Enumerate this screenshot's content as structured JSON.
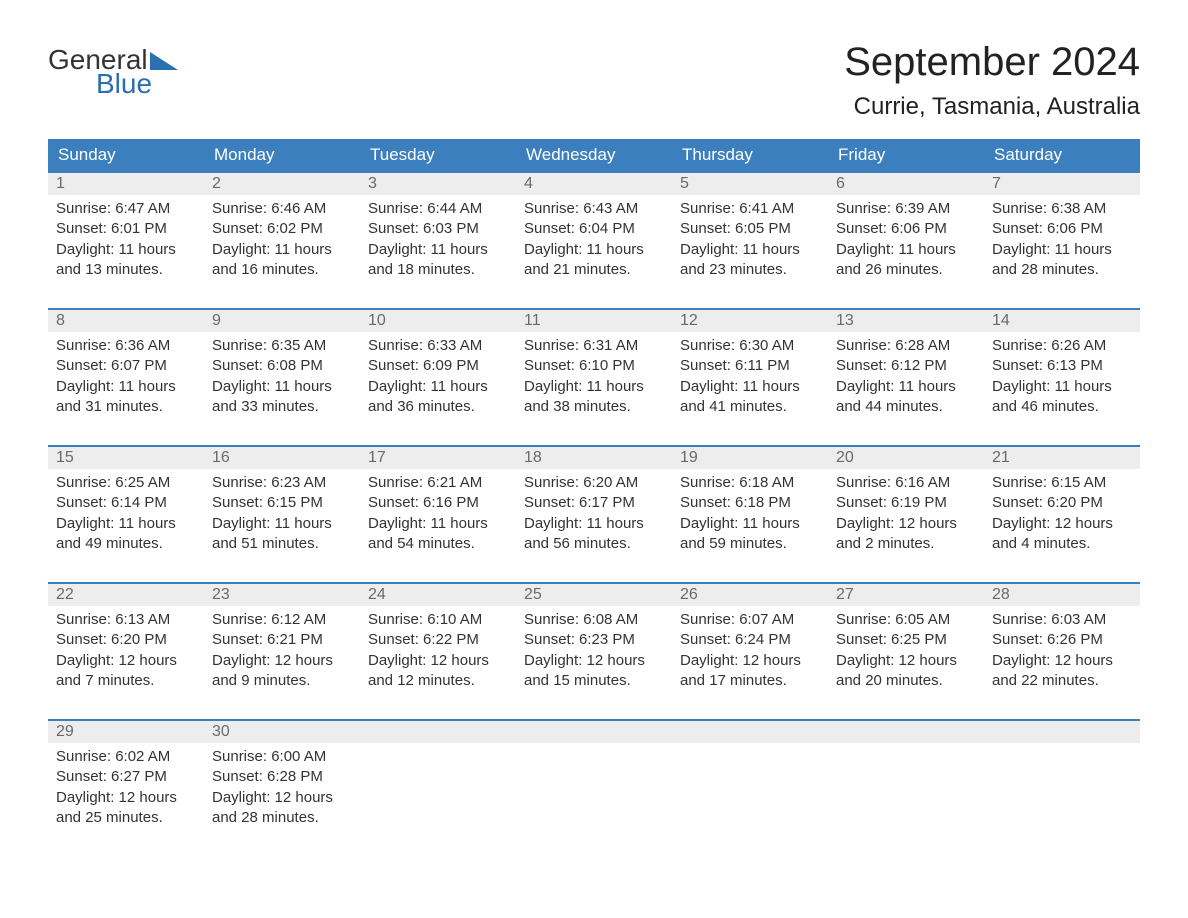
{
  "brand": {
    "name_part1": "General",
    "name_part2": "Blue",
    "text_color": "#333333",
    "accent_color": "#2b6fb0",
    "triangle_color": "#2b6fb0"
  },
  "title": {
    "month": "September 2024",
    "location": "Currie, Tasmania, Australia",
    "month_fontsize": 40,
    "location_fontsize": 24,
    "text_color": "#222222"
  },
  "calendar": {
    "type": "calendar-table",
    "header_bg": "#3b7fbf",
    "header_text_color": "#ffffff",
    "daynum_bg": "#ededed",
    "daynum_border_color": "#3b7fbf",
    "daynum_text_color": "#6a6a6a",
    "body_text_color": "#333333",
    "body_fontsize": 15,
    "columns": [
      "Sunday",
      "Monday",
      "Tuesday",
      "Wednesday",
      "Thursday",
      "Friday",
      "Saturday"
    ],
    "weeks": [
      [
        {
          "n": "1",
          "sunrise": "Sunrise: 6:47 AM",
          "sunset": "Sunset: 6:01 PM",
          "daylight": "Daylight: 11 hours and 13 minutes."
        },
        {
          "n": "2",
          "sunrise": "Sunrise: 6:46 AM",
          "sunset": "Sunset: 6:02 PM",
          "daylight": "Daylight: 11 hours and 16 minutes."
        },
        {
          "n": "3",
          "sunrise": "Sunrise: 6:44 AM",
          "sunset": "Sunset: 6:03 PM",
          "daylight": "Daylight: 11 hours and 18 minutes."
        },
        {
          "n": "4",
          "sunrise": "Sunrise: 6:43 AM",
          "sunset": "Sunset: 6:04 PM",
          "daylight": "Daylight: 11 hours and 21 minutes."
        },
        {
          "n": "5",
          "sunrise": "Sunrise: 6:41 AM",
          "sunset": "Sunset: 6:05 PM",
          "daylight": "Daylight: 11 hours and 23 minutes."
        },
        {
          "n": "6",
          "sunrise": "Sunrise: 6:39 AM",
          "sunset": "Sunset: 6:06 PM",
          "daylight": "Daylight: 11 hours and 26 minutes."
        },
        {
          "n": "7",
          "sunrise": "Sunrise: 6:38 AM",
          "sunset": "Sunset: 6:06 PM",
          "daylight": "Daylight: 11 hours and 28 minutes."
        }
      ],
      [
        {
          "n": "8",
          "sunrise": "Sunrise: 6:36 AM",
          "sunset": "Sunset: 6:07 PM",
          "daylight": "Daylight: 11 hours and 31 minutes."
        },
        {
          "n": "9",
          "sunrise": "Sunrise: 6:35 AM",
          "sunset": "Sunset: 6:08 PM",
          "daylight": "Daylight: 11 hours and 33 minutes."
        },
        {
          "n": "10",
          "sunrise": "Sunrise: 6:33 AM",
          "sunset": "Sunset: 6:09 PM",
          "daylight": "Daylight: 11 hours and 36 minutes."
        },
        {
          "n": "11",
          "sunrise": "Sunrise: 6:31 AM",
          "sunset": "Sunset: 6:10 PM",
          "daylight": "Daylight: 11 hours and 38 minutes."
        },
        {
          "n": "12",
          "sunrise": "Sunrise: 6:30 AM",
          "sunset": "Sunset: 6:11 PM",
          "daylight": "Daylight: 11 hours and 41 minutes."
        },
        {
          "n": "13",
          "sunrise": "Sunrise: 6:28 AM",
          "sunset": "Sunset: 6:12 PM",
          "daylight": "Daylight: 11 hours and 44 minutes."
        },
        {
          "n": "14",
          "sunrise": "Sunrise: 6:26 AM",
          "sunset": "Sunset: 6:13 PM",
          "daylight": "Daylight: 11 hours and 46 minutes."
        }
      ],
      [
        {
          "n": "15",
          "sunrise": "Sunrise: 6:25 AM",
          "sunset": "Sunset: 6:14 PM",
          "daylight": "Daylight: 11 hours and 49 minutes."
        },
        {
          "n": "16",
          "sunrise": "Sunrise: 6:23 AM",
          "sunset": "Sunset: 6:15 PM",
          "daylight": "Daylight: 11 hours and 51 minutes."
        },
        {
          "n": "17",
          "sunrise": "Sunrise: 6:21 AM",
          "sunset": "Sunset: 6:16 PM",
          "daylight": "Daylight: 11 hours and 54 minutes."
        },
        {
          "n": "18",
          "sunrise": "Sunrise: 6:20 AM",
          "sunset": "Sunset: 6:17 PM",
          "daylight": "Daylight: 11 hours and 56 minutes."
        },
        {
          "n": "19",
          "sunrise": "Sunrise: 6:18 AM",
          "sunset": "Sunset: 6:18 PM",
          "daylight": "Daylight: 11 hours and 59 minutes."
        },
        {
          "n": "20",
          "sunrise": "Sunrise: 6:16 AM",
          "sunset": "Sunset: 6:19 PM",
          "daylight": "Daylight: 12 hours and 2 minutes."
        },
        {
          "n": "21",
          "sunrise": "Sunrise: 6:15 AM",
          "sunset": "Sunset: 6:20 PM",
          "daylight": "Daylight: 12 hours and 4 minutes."
        }
      ],
      [
        {
          "n": "22",
          "sunrise": "Sunrise: 6:13 AM",
          "sunset": "Sunset: 6:20 PM",
          "daylight": "Daylight: 12 hours and 7 minutes."
        },
        {
          "n": "23",
          "sunrise": "Sunrise: 6:12 AM",
          "sunset": "Sunset: 6:21 PM",
          "daylight": "Daylight: 12 hours and 9 minutes."
        },
        {
          "n": "24",
          "sunrise": "Sunrise: 6:10 AM",
          "sunset": "Sunset: 6:22 PM",
          "daylight": "Daylight: 12 hours and 12 minutes."
        },
        {
          "n": "25",
          "sunrise": "Sunrise: 6:08 AM",
          "sunset": "Sunset: 6:23 PM",
          "daylight": "Daylight: 12 hours and 15 minutes."
        },
        {
          "n": "26",
          "sunrise": "Sunrise: 6:07 AM",
          "sunset": "Sunset: 6:24 PM",
          "daylight": "Daylight: 12 hours and 17 minutes."
        },
        {
          "n": "27",
          "sunrise": "Sunrise: 6:05 AM",
          "sunset": "Sunset: 6:25 PM",
          "daylight": "Daylight: 12 hours and 20 minutes."
        },
        {
          "n": "28",
          "sunrise": "Sunrise: 6:03 AM",
          "sunset": "Sunset: 6:26 PM",
          "daylight": "Daylight: 12 hours and 22 minutes."
        }
      ],
      [
        {
          "n": "29",
          "sunrise": "Sunrise: 6:02 AM",
          "sunset": "Sunset: 6:27 PM",
          "daylight": "Daylight: 12 hours and 25 minutes."
        },
        {
          "n": "30",
          "sunrise": "Sunrise: 6:00 AM",
          "sunset": "Sunset: 6:28 PM",
          "daylight": "Daylight: 12 hours and 28 minutes."
        },
        {
          "n": "",
          "sunrise": "",
          "sunset": "",
          "daylight": ""
        },
        {
          "n": "",
          "sunrise": "",
          "sunset": "",
          "daylight": ""
        },
        {
          "n": "",
          "sunrise": "",
          "sunset": "",
          "daylight": ""
        },
        {
          "n": "",
          "sunrise": "",
          "sunset": "",
          "daylight": ""
        },
        {
          "n": "",
          "sunrise": "",
          "sunset": "",
          "daylight": ""
        }
      ]
    ]
  }
}
